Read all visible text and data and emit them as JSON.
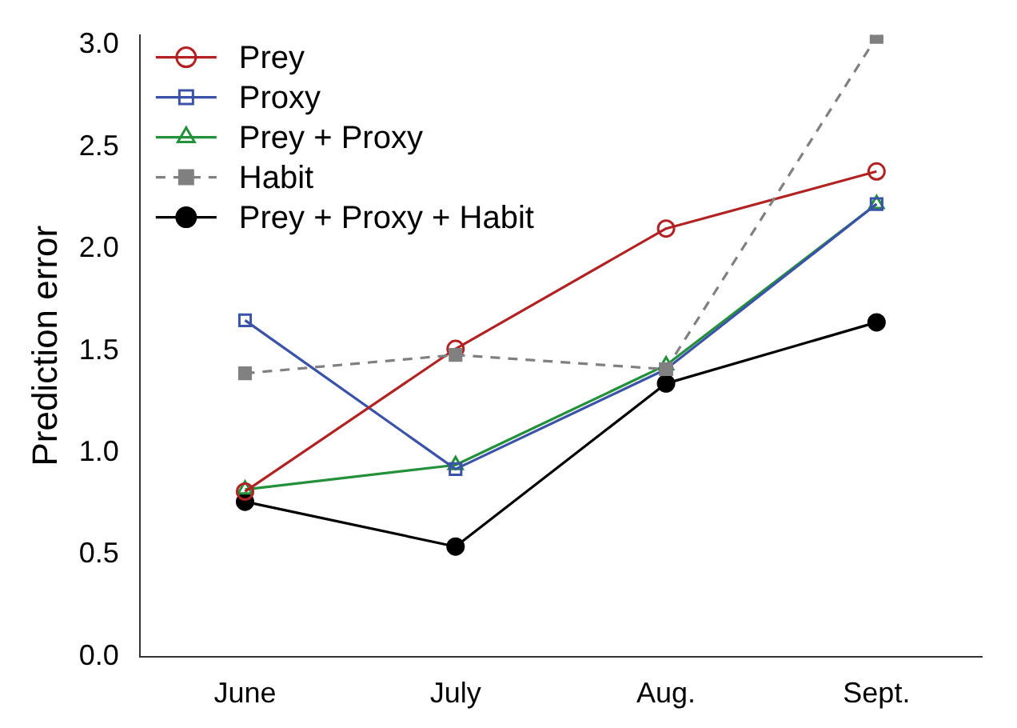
{
  "chart_data": {
    "type": "line",
    "ylabel": "Prediction error",
    "categories": [
      "June",
      "July",
      "Aug.",
      "Sept."
    ],
    "series": [
      {
        "name": "Prey",
        "color": "#b22222",
        "marker": "circle",
        "line_style": "solid",
        "values": [
          0.81,
          1.51,
          2.1,
          2.38
        ]
      },
      {
        "name": "Proxy",
        "color": "#3a52a8",
        "marker": "square",
        "line_style": "solid",
        "values": [
          1.65,
          0.92,
          1.41,
          2.22
        ]
      },
      {
        "name": "Prey + Proxy",
        "color": "#23903a",
        "marker": "triangle",
        "line_style": "solid",
        "values": [
          0.82,
          0.94,
          1.43,
          2.22
        ]
      },
      {
        "name": "Habit",
        "color": "#808080",
        "marker": "square",
        "line_style": "dashed",
        "values": [
          1.39,
          1.48,
          1.41,
          3.04
        ]
      },
      {
        "name": "Prey + Proxy + Habit",
        "color": "#000000",
        "marker": "circle",
        "line_style": "solid",
        "values": [
          0.76,
          0.54,
          1.34,
          1.64
        ]
      }
    ],
    "ylim": [
      0,
      3.05
    ],
    "yticks": [
      {
        "value": 0,
        "label": "0.0"
      },
      0.5,
      {
        "value": 1,
        "label": "1.0"
      },
      1.5,
      {
        "value": 2,
        "label": "2.0"
      },
      2.5,
      {
        "value": 3,
        "label": "3.0"
      }
    ],
    "grid": false,
    "legend": "top left"
  }
}
